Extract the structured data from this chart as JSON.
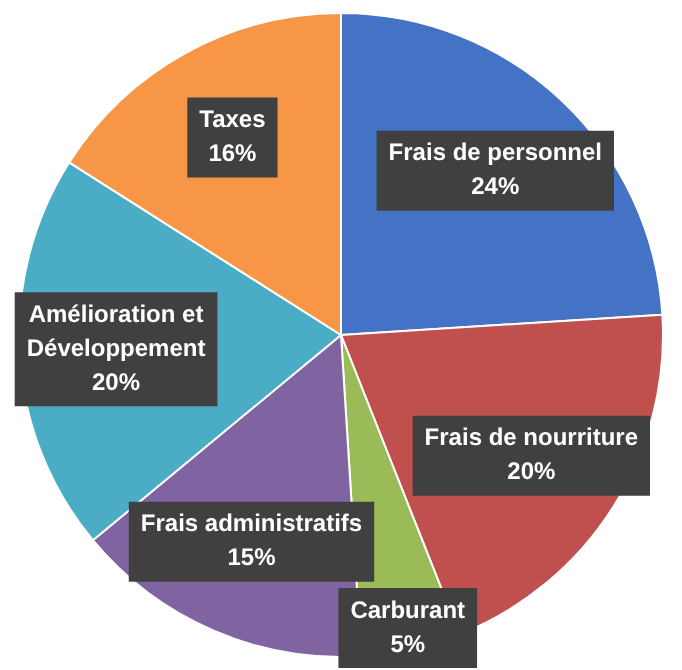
{
  "chart_data": {
    "type": "pie",
    "categories": [
      "Frais de personnel",
      "Frais de nourriture",
      "Carburant",
      "Frais administratifs",
      "Amélioration et Développement",
      "Taxes"
    ],
    "values": [
      24,
      20,
      5,
      15,
      20,
      16
    ],
    "colors": [
      "#4472c4",
      "#c0504d",
      "#9bbb59",
      "#8064a2",
      "#4bacc6",
      "#f79646"
    ],
    "value_labels": [
      "24%",
      "20%",
      "5%",
      "15%",
      "20%",
      "16%"
    ],
    "legend": false
  }
}
